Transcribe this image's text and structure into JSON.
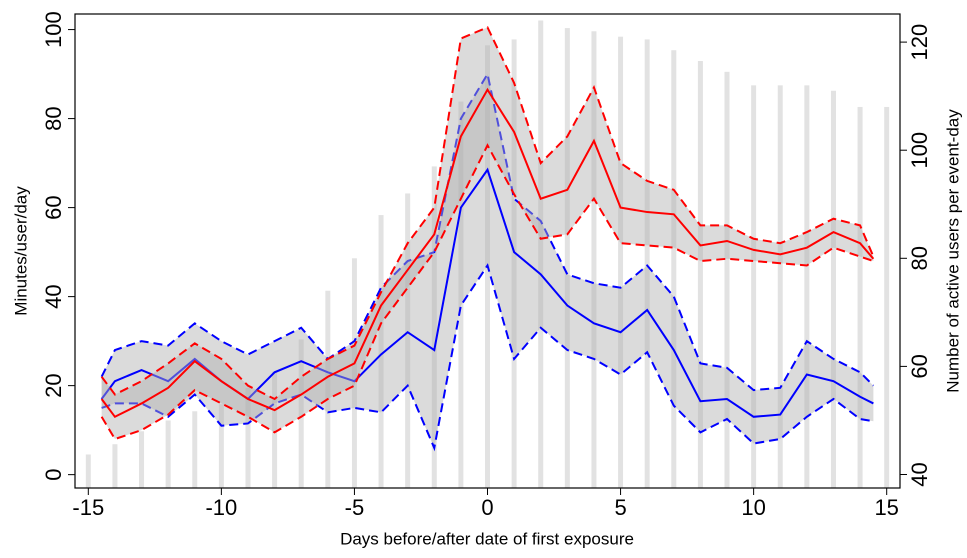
{
  "chart_data": {
    "type": "line",
    "x_label": "Days before/after date of first exposure",
    "y_label": "Minutes/user/day",
    "y2_label": "Number of active users per event-day",
    "xlim": [
      -15.5,
      15.5
    ],
    "ylim": [
      -3,
      103.5
    ],
    "y2lim": [
      37.5,
      125.2
    ],
    "xticks": [
      -15,
      -10,
      -5,
      0,
      5,
      10,
      15
    ],
    "yticks": [
      0,
      20,
      40,
      60,
      80,
      100
    ],
    "y2ticks": [
      40,
      60,
      80,
      100,
      120
    ],
    "bars": {
      "axis": "y2",
      "color": "#e2e2e2",
      "x": [
        -15,
        -14,
        -13,
        -12,
        -11,
        -10,
        -9,
        -8,
        -7,
        -6,
        -5,
        -4,
        -3,
        -2,
        -1,
        0,
        1,
        2,
        3,
        4,
        5,
        6,
        7,
        8,
        9,
        10,
        11,
        12,
        13,
        14,
        15
      ],
      "values": [
        43.7,
        45.6,
        48,
        50,
        51.7,
        53,
        56,
        59,
        65,
        74,
        80,
        88,
        92,
        97,
        109,
        119.4,
        120.5,
        124,
        122.6,
        122,
        121,
        120.5,
        118.5,
        116.5,
        114.5,
        112,
        112,
        112,
        111,
        108,
        108
      ]
    },
    "x": [
      -14.5,
      -14,
      -13,
      -12,
      -11,
      -10,
      -9,
      -8,
      -7,
      -6,
      -5,
      -4,
      -3,
      -2,
      -1,
      0,
      1,
      2,
      3,
      4,
      5,
      6,
      7,
      8,
      9,
      10,
      11,
      12,
      13,
      14,
      14.5
    ],
    "band_color": "#b0b0b0",
    "bands": [
      {
        "lower": 1,
        "upper": 2
      },
      {
        "lower": 4,
        "upper": 5
      }
    ],
    "series": [
      {
        "color": "#0000ff",
        "dashed": false,
        "values": [
          17,
          21,
          23.5,
          21,
          26,
          21,
          17,
          23,
          25.5,
          23,
          21,
          27,
          32,
          28,
          60,
          68.5,
          50,
          45,
          38,
          34,
          32,
          37,
          28,
          16.5,
          17,
          13,
          13.5,
          22.5,
          21,
          17.5,
          16
        ]
      },
      {
        "color": "#0000ff",
        "dashed": true,
        "values": [
          15,
          16,
          16,
          13,
          18,
          11,
          11.5,
          16,
          18,
          14,
          15,
          14,
          20,
          6,
          38,
          47,
          26,
          33,
          28,
          26,
          22.5,
          27.5,
          15.5,
          9.5,
          12.5,
          7,
          8,
          13,
          17,
          12.5,
          12
        ]
      },
      {
        "color": "#0000ff",
        "dashed": true,
        "values": [
          22,
          28,
          30,
          29,
          34,
          30,
          27,
          30,
          33,
          26,
          30,
          42,
          48,
          50,
          80,
          90,
          62,
          57,
          45,
          43,
          42,
          47,
          40,
          25,
          24,
          19,
          19.5,
          30,
          26,
          23,
          20
        ]
      },
      {
        "color": "#ff0000",
        "dashed": false,
        "values": [
          17,
          13,
          16,
          19.5,
          25.5,
          21,
          17,
          14.5,
          18,
          22,
          25,
          38,
          46,
          54,
          76,
          86.5,
          77,
          62,
          64,
          75,
          60,
          59,
          58.5,
          51.5,
          52.5,
          50.5,
          49.5,
          51,
          54.5,
          52,
          48.5
        ]
      },
      {
        "color": "#ff0000",
        "dashed": true,
        "values": [
          13,
          8,
          10,
          13.5,
          19,
          16,
          13,
          9.5,
          13,
          17,
          20,
          34,
          42,
          50,
          62,
          74,
          63,
          53,
          54,
          62,
          52,
          51.5,
          51,
          48,
          48.5,
          48,
          47.5,
          47,
          51,
          49,
          48
        ]
      },
      {
        "color": "#ff0000",
        "dashed": true,
        "values": [
          22,
          18,
          21,
          25,
          29.5,
          26,
          20,
          17,
          22,
          26,
          29,
          41,
          52,
          60,
          98,
          100.5,
          88,
          70,
          76,
          87,
          70,
          66,
          64,
          56,
          56,
          53,
          52,
          54.5,
          57.5,
          56,
          49
        ]
      }
    ]
  }
}
